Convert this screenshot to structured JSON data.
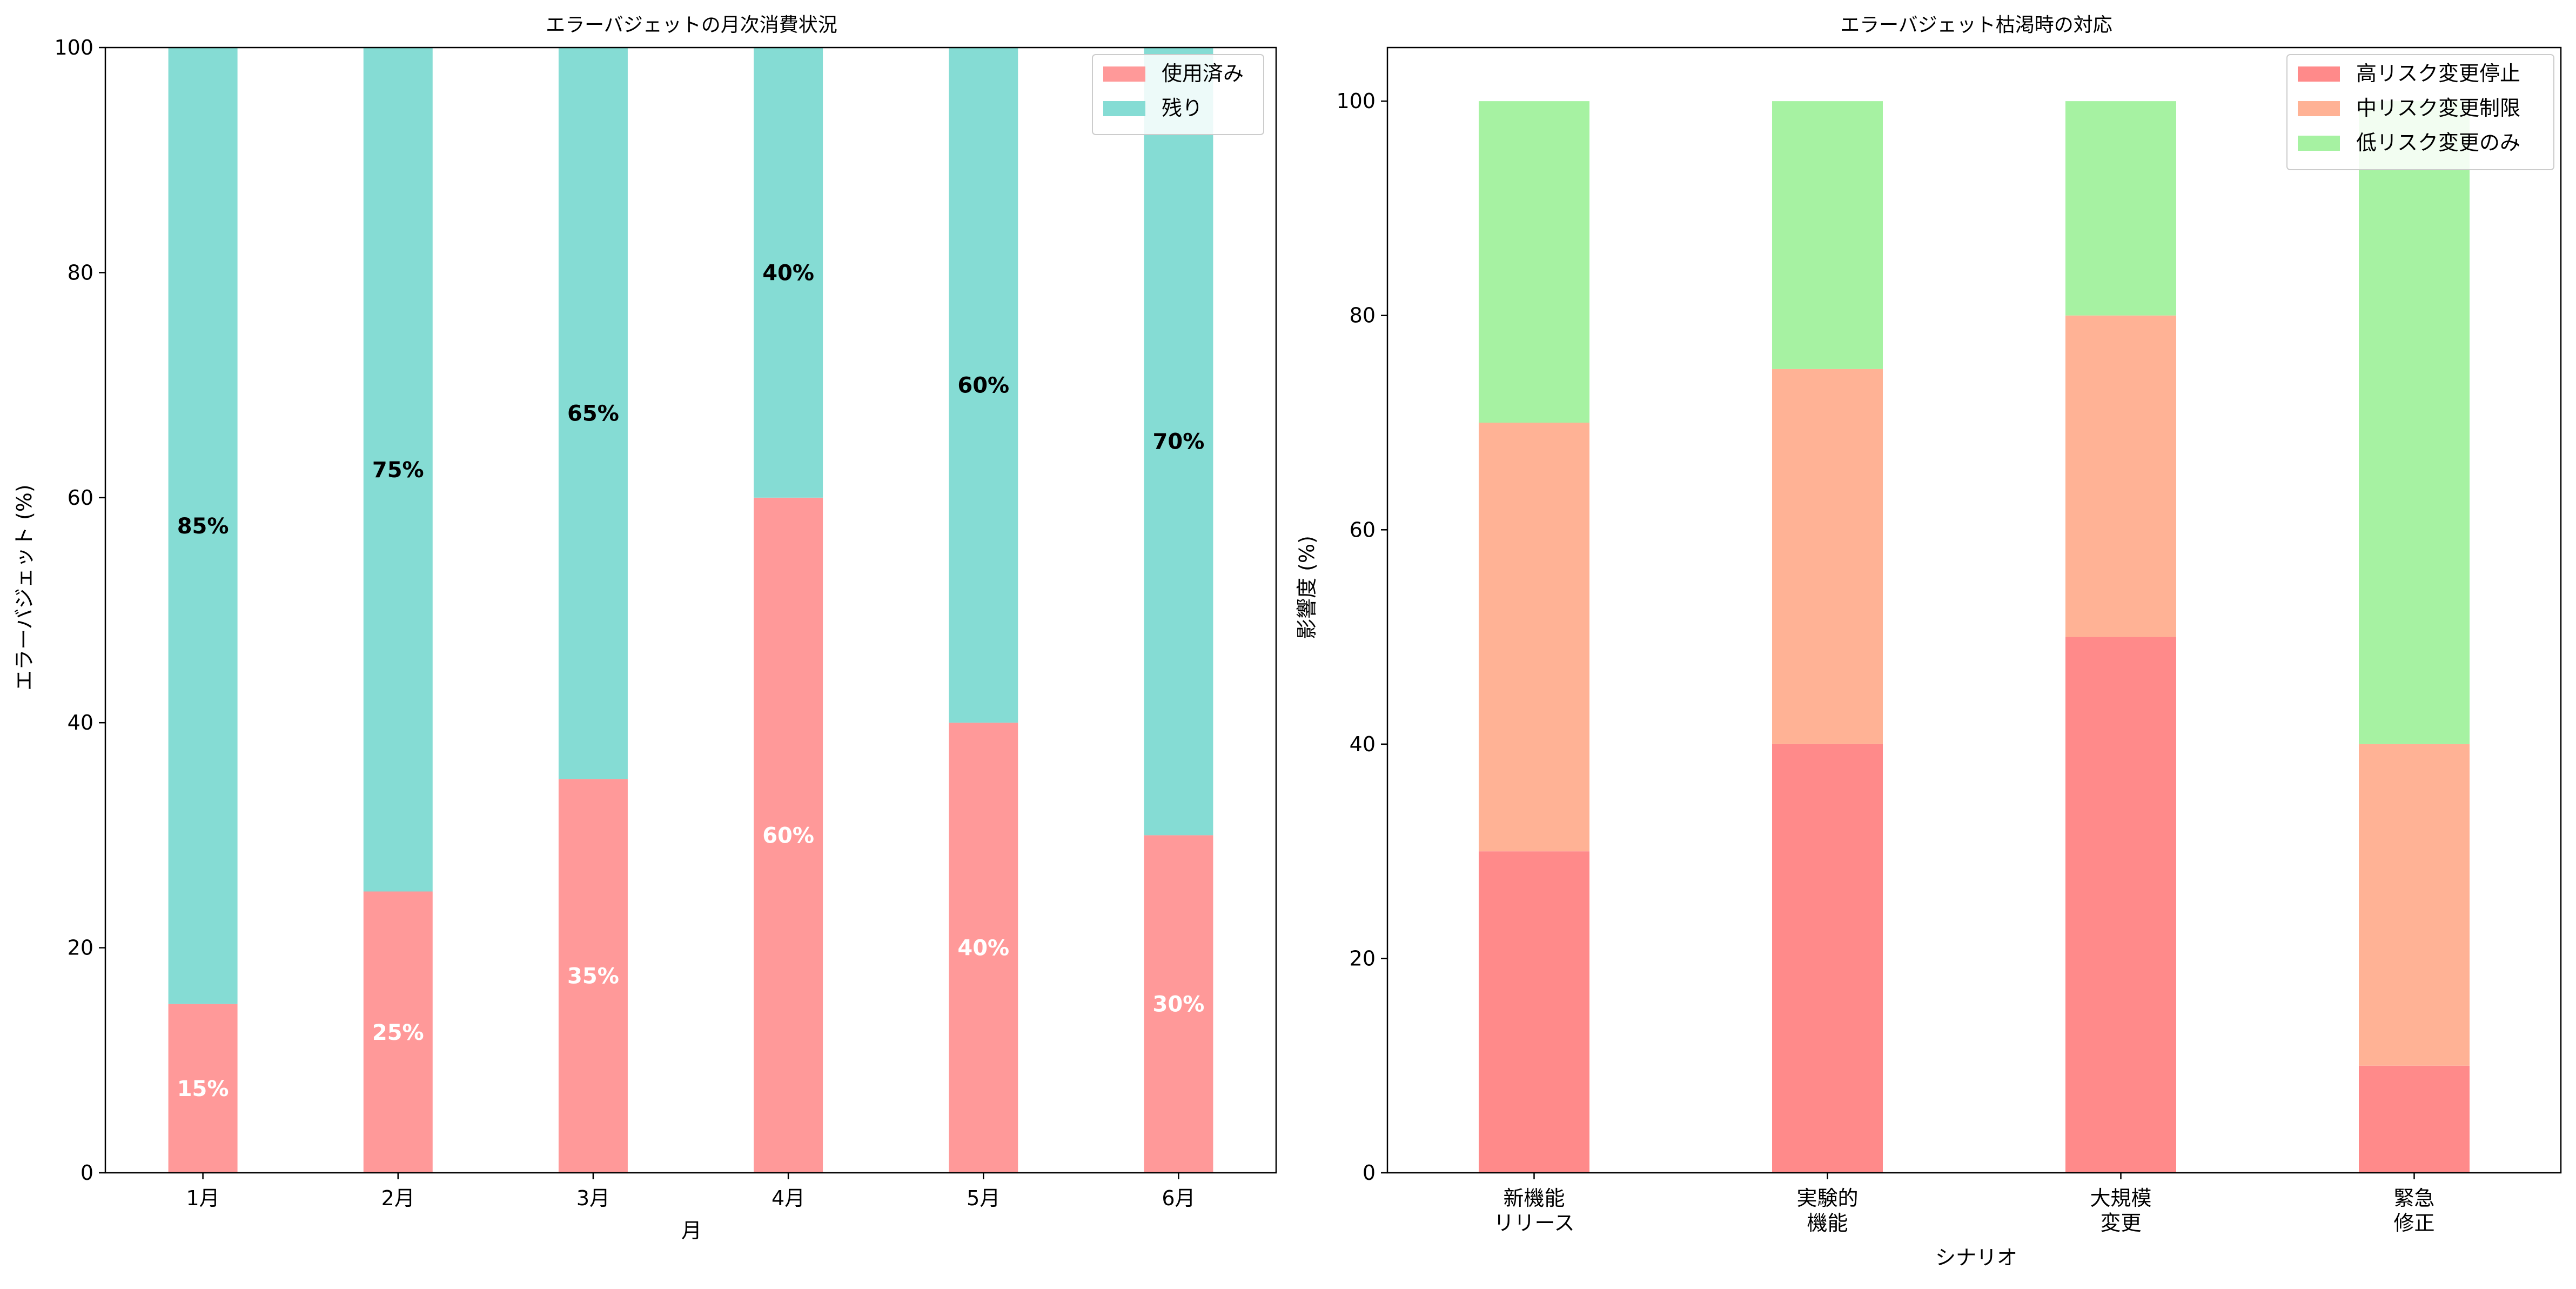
{
  "chart_data": [
    {
      "type": "bar",
      "stacked": true,
      "title": "エラーバジェットの月次消費状況",
      "xlabel": "月",
      "ylabel": "エラーバジェット (%)",
      "ylim": [
        0,
        100
      ],
      "yticks": [
        "0",
        "20",
        "40",
        "60",
        "80",
        "100"
      ],
      "categories": [
        "1月",
        "2月",
        "3月",
        "4月",
        "5月",
        "6月"
      ],
      "series": [
        {
          "name": "使用済み",
          "color": "#ff9999",
          "label_color": "#ffffff",
          "values": [
            15,
            25,
            35,
            60,
            40,
            30
          ]
        },
        {
          "name": "残り",
          "color": "#85dcd4",
          "label_color": "#000000",
          "values": [
            85,
            75,
            65,
            40,
            60,
            70
          ]
        }
      ],
      "data_labels": [
        [
          "15%",
          "25%",
          "35%",
          "60%",
          "40%",
          "30%"
        ],
        [
          "85%",
          "75%",
          "65%",
          "40%",
          "60%",
          "70%"
        ]
      ],
      "legend": "top-right",
      "grid": false
    },
    {
      "type": "bar",
      "stacked": true,
      "title": "エラーバジェット枯渇時の対応",
      "xlabel": "シナリオ",
      "ylabel": "影響度 (%)",
      "ylim": [
        0,
        105
      ],
      "yticks": [
        "0",
        "20",
        "40",
        "60",
        "80",
        "100"
      ],
      "categories": [
        [
          "新機能",
          "リリース"
        ],
        [
          "実験的",
          "機能"
        ],
        [
          "大規模",
          "変更"
        ],
        [
          "緊急",
          "修正"
        ]
      ],
      "series": [
        {
          "name": "高リスク変更停止",
          "color": "#ff8a8a",
          "values": [
            30,
            40,
            50,
            10
          ]
        },
        {
          "name": "中リスク変更制限",
          "color": "#ffb295",
          "values": [
            40,
            35,
            30,
            30
          ]
        },
        {
          "name": "低リスク変更のみ",
          "color": "#a6f2a2",
          "values": [
            30,
            25,
            20,
            60
          ]
        }
      ],
      "legend": "top-right",
      "grid": false
    }
  ]
}
